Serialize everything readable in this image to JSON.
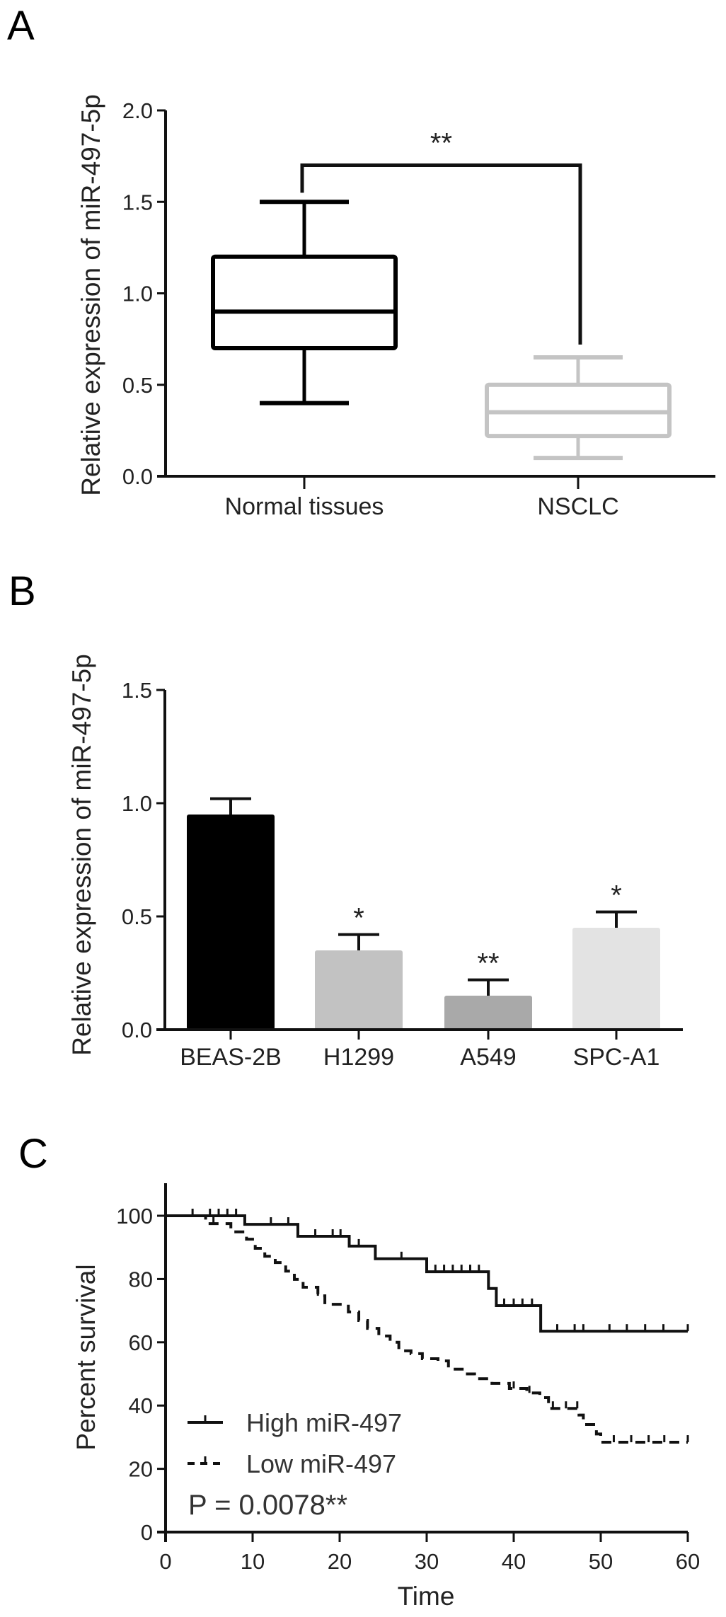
{
  "chart_data": [
    {
      "panel": "A",
      "type": "box",
      "ylabel": "Relative expression of miR-497-5p",
      "ylim": [
        0,
        2.0
      ],
      "yticks": [
        "0.0",
        "0.5",
        "1.0",
        "1.5",
        "2.0"
      ],
      "ytick_values": [
        0,
        0.5,
        1.0,
        1.5,
        2.0
      ],
      "categories": [
        "Normal tissues",
        "NSCLC"
      ],
      "boxes": [
        {
          "min": 0.4,
          "q1": 0.7,
          "median": 0.9,
          "q3": 1.2,
          "max": 1.5,
          "color": "#000000"
        },
        {
          "min": 0.1,
          "q1": 0.22,
          "median": 0.35,
          "q3": 0.5,
          "max": 0.65,
          "color": "#c4c4c4"
        }
      ],
      "significance": {
        "label": "**",
        "y": 1.7
      }
    },
    {
      "panel": "B",
      "type": "bar",
      "ylabel": "Relative expression of miR-497-5p",
      "ylim": [
        0,
        1.5
      ],
      "yticks": [
        "0.0",
        "0.5",
        "1.0",
        "1.5"
      ],
      "ytick_values": [
        0,
        0.5,
        1.0,
        1.5
      ],
      "categories": [
        "BEAS-2B",
        "H1299",
        "A549",
        "SPC-A1"
      ],
      "values": [
        0.95,
        0.35,
        0.15,
        0.45
      ],
      "error_upper": [
        1.02,
        0.42,
        0.22,
        0.52
      ],
      "annotations": [
        "",
        "*",
        "**",
        "*"
      ],
      "colors": [
        "#000000",
        "#c2c2c2",
        "#a9a9a9",
        "#e3e3e3"
      ]
    },
    {
      "panel": "C",
      "type": "line",
      "subtype": "kaplan-meier",
      "xlabel": "Time",
      "ylabel": "Percent survival",
      "xlim": [
        0,
        60
      ],
      "ylim": [
        0,
        100
      ],
      "xticks": [
        "0",
        "10",
        "20",
        "30",
        "40",
        "50",
        "60"
      ],
      "xtick_values": [
        0,
        10,
        20,
        30,
        40,
        50,
        60
      ],
      "yticks": [
        "0",
        "20",
        "40",
        "60",
        "80",
        "100"
      ],
      "ytick_values": [
        0,
        20,
        40,
        60,
        80,
        100
      ],
      "annotation": "P = 0.0078**",
      "legend_position": "bottom-left",
      "series": [
        {
          "name": "High miR-497",
          "style": "solid",
          "steps": [
            [
              0,
              100
            ],
            [
              9.1,
              97.3
            ],
            [
              15.2,
              93.5
            ],
            [
              21.1,
              90.4
            ],
            [
              24.1,
              86.4
            ],
            [
              30,
              82.3
            ],
            [
              37.1,
              77
            ],
            [
              38,
              71.6
            ],
            [
              43.1,
              63.5
            ]
          ],
          "end": 60,
          "censored": [
            3.1,
            5.1,
            6.1,
            7.1,
            8.1,
            12.1,
            14.1,
            17.2,
            19.2,
            20.1,
            22.2,
            27.1,
            31,
            32,
            33,
            34,
            35,
            36,
            38.9,
            40,
            41,
            42.1,
            45,
            47,
            48,
            51,
            53,
            55.1,
            57.2,
            60
          ]
        },
        {
          "name": "Low miR-497",
          "style": "dashed",
          "steps": [
            [
              0,
              100
            ],
            [
              4.6,
              97.5
            ],
            [
              7.5,
              94.9
            ],
            [
              9.3,
              92.6
            ],
            [
              10.3,
              89.7
            ],
            [
              11.4,
              87.2
            ],
            [
              12.6,
              85.2
            ],
            [
              13.8,
              82.5
            ],
            [
              14.8,
              79.9
            ],
            [
              15.8,
              77.4
            ],
            [
              17.5,
              74.7
            ],
            [
              18.3,
              72
            ],
            [
              21,
              69.6
            ],
            [
              22.2,
              66.9
            ],
            [
              23.2,
              64.4
            ],
            [
              24.5,
              62
            ],
            [
              25.8,
              60
            ],
            [
              26.8,
              57.3
            ],
            [
              28.2,
              56.4
            ],
            [
              29.5,
              54.8
            ],
            [
              31.3,
              54.1
            ],
            [
              32.5,
              51.5
            ],
            [
              34.5,
              50
            ],
            [
              35.5,
              48.5
            ],
            [
              37.5,
              47
            ],
            [
              39.5,
              45.4
            ],
            [
              41.5,
              44
            ],
            [
              43,
              42.5
            ],
            [
              44,
              39.1
            ],
            [
              47.5,
              37
            ],
            [
              48,
              34
            ],
            [
              49.5,
              31
            ],
            [
              50,
              28.4
            ]
          ],
          "end": 60,
          "censored": [
            5.5,
            17.5,
            40,
            41.8,
            44.5,
            46,
            47.3,
            51.5,
            53.5,
            55.5,
            57.3,
            60
          ]
        }
      ]
    }
  ]
}
